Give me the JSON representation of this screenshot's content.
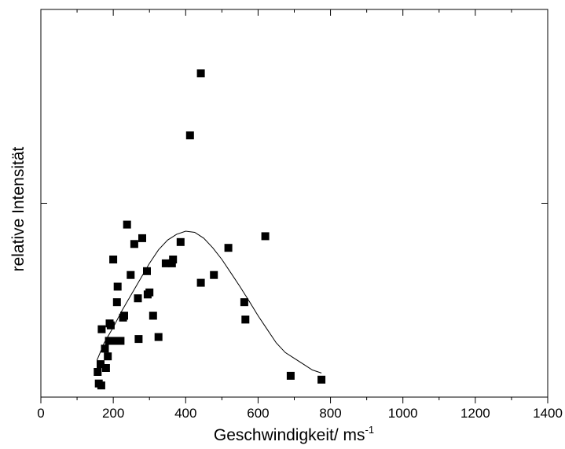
{
  "chart_data": {
    "type": "scatter",
    "title": "",
    "xlabel": "Geschwindigkeit/ ms",
    "xlabel_superscript": "-1",
    "ylabel": "relative Intensität",
    "xlim": [
      0,
      1400
    ],
    "x_ticks": [
      0,
      200,
      400,
      600,
      800,
      1000,
      1200,
      1400
    ],
    "x_minor_step": 100,
    "ylim": [
      0,
      1
    ],
    "y_tick_labels_shown": false,
    "grid": false,
    "legend": "none",
    "colors": {
      "points": "#000000",
      "curve": "#000000",
      "axes": "#000000",
      "background": "#ffffff"
    },
    "series": [
      {
        "kind": "points",
        "marker": "square",
        "x": [
          157,
          160,
          165,
          167,
          168,
          177,
          180,
          185,
          188,
          190,
          193,
          200,
          200,
          210,
          212,
          220,
          227,
          230,
          238,
          248,
          258,
          268,
          270,
          280,
          293,
          295,
          300,
          310,
          325,
          345,
          362,
          365,
          386,
          412,
          442,
          442,
          478,
          518,
          562,
          565,
          620,
          690,
          775
        ],
        "y": [
          0.065,
          0.035,
          0.085,
          0.03,
          0.175,
          0.125,
          0.075,
          0.105,
          0.145,
          0.19,
          0.185,
          0.145,
          0.355,
          0.245,
          0.285,
          0.145,
          0.205,
          0.21,
          0.445,
          0.315,
          0.395,
          0.255,
          0.15,
          0.41,
          0.325,
          0.265,
          0.27,
          0.21,
          0.155,
          0.345,
          0.345,
          0.355,
          0.4,
          0.675,
          0.835,
          0.295,
          0.315,
          0.385,
          0.245,
          0.2,
          0.415,
          0.055,
          0.045
        ]
      },
      {
        "kind": "line",
        "x": [
          155,
          175,
          200,
          225,
          250,
          275,
          300,
          325,
          350,
          375,
          400,
          425,
          450,
          475,
          500,
          525,
          550,
          575,
          600,
          625,
          650,
          675,
          700,
          725,
          750,
          775
        ],
        "y": [
          0.095,
          0.14,
          0.18,
          0.225,
          0.265,
          0.305,
          0.345,
          0.38,
          0.405,
          0.42,
          0.428,
          0.425,
          0.41,
          0.385,
          0.355,
          0.32,
          0.285,
          0.248,
          0.21,
          0.175,
          0.14,
          0.115,
          0.1,
          0.085,
          0.07,
          0.062
        ]
      }
    ]
  }
}
